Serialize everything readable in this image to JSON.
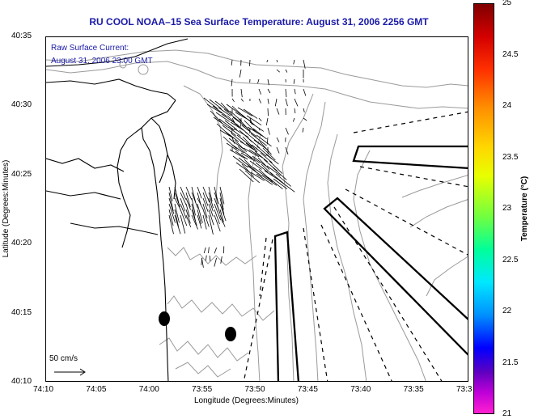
{
  "title": "RU COOL  NOAA–15  Sea Surface Temperature:  August 31, 2006 2256 GMT",
  "notes": {
    "current_title": "Raw Surface Current:",
    "current_time": "August 31, 2006 23:00 GMT",
    "scale_label": "50 cm/s"
  },
  "axes": {
    "xlabel": "Longitude (Degrees:Minutes)",
    "ylabel": "Latitude (Degrees:Minutes)",
    "x_ticks": [
      "74:10",
      "74:05",
      "74:00",
      "73:55",
      "73:50",
      "73:45",
      "73:40",
      "73:35",
      "73:3"
    ],
    "y_ticks": [
      "40:35",
      "40:30",
      "40:25",
      "40:20",
      "40:15",
      "40:10"
    ]
  },
  "colorbar": {
    "title": "Temperature (°C)",
    "labels": [
      "25",
      "24.5",
      "24",
      "23.5",
      "23",
      "22.5",
      "22",
      "21.5",
      "21"
    ],
    "min": 21,
    "max": 25
  },
  "colors": {
    "title": "#1a1aa8",
    "contour": "#9a9a9a",
    "coast": "#000000"
  }
}
